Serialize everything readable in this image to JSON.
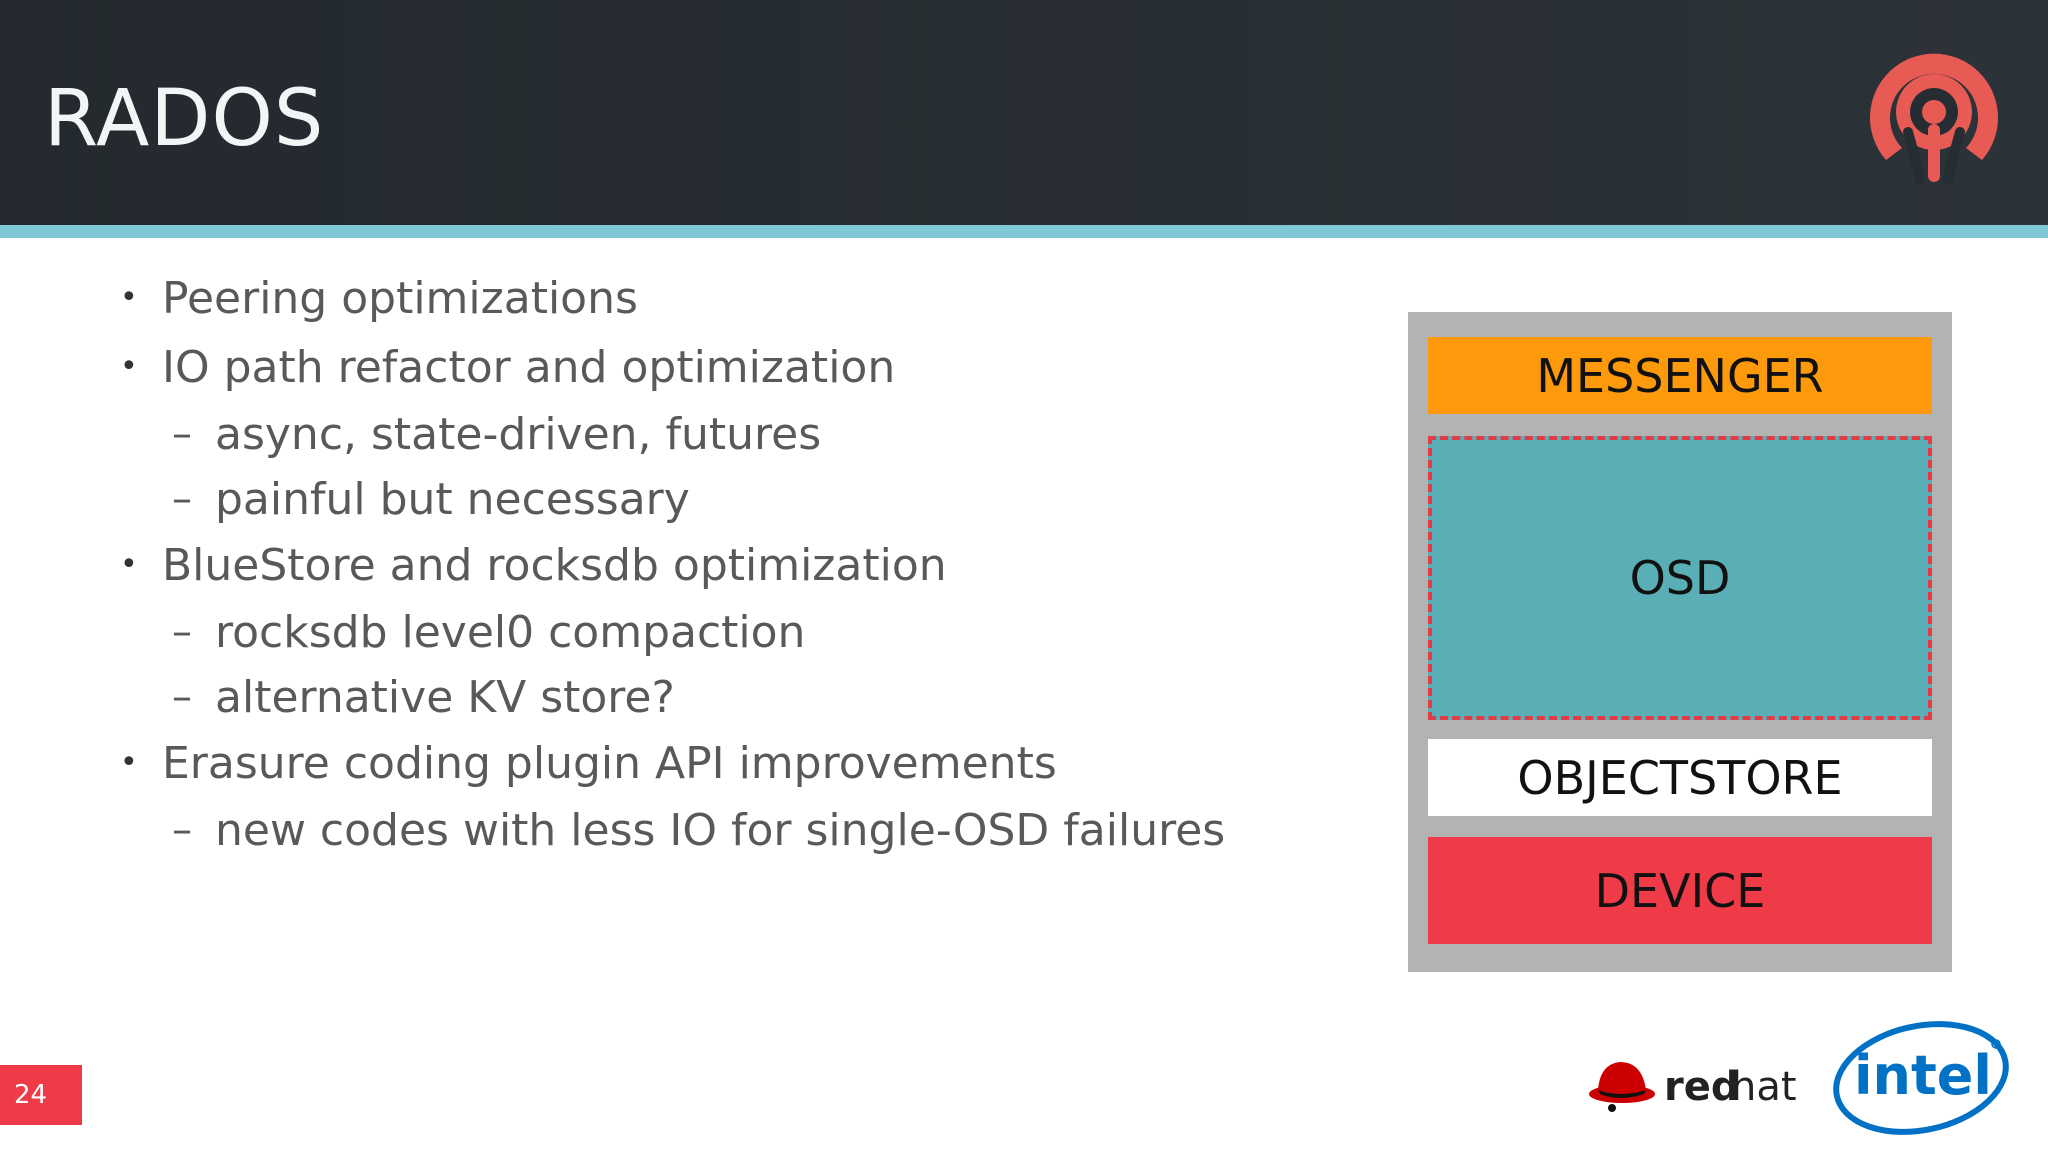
{
  "slide": {
    "title": "RADOS",
    "page_number": "24"
  },
  "bullets": [
    {
      "level": 1,
      "text": "Peering optimizations"
    },
    {
      "level": 1,
      "text": "IO path refactor and optimization"
    },
    {
      "level": 2,
      "text": "async, state-driven, futures"
    },
    {
      "level": 2,
      "text": "painful but necessary"
    },
    {
      "level": 1,
      "text": "BlueStore and rocksdb optimization"
    },
    {
      "level": 2,
      "text": "rocksdb level0 compaction"
    },
    {
      "level": 2,
      "text": "alternative KV store?"
    },
    {
      "level": 1,
      "text": "Erasure coding plugin API improvements"
    },
    {
      "level": 2,
      "text": "new codes with less IO for single-OSD failures"
    }
  ],
  "stack_diagram": {
    "layers": {
      "messenger": "MESSENGER",
      "osd": "OSD",
      "objectstore": "OBJECTSTORE",
      "device": "DEVICE"
    },
    "colors": {
      "frame": "#b3b3b3",
      "messenger": "#fd9a0b",
      "osd": "#5aafb6",
      "osd_border": "#e63946",
      "objectstore": "#ffffff",
      "device": "#ef3a47"
    }
  },
  "logos": {
    "ceph": "ceph-logo-icon",
    "redhat_text_bold": "red",
    "redhat_text_light": "hat",
    "intel_text": "intel"
  },
  "colors": {
    "header_bg": "#262d32",
    "header_stripe": "#7fc8d6",
    "accent_red": "#ef3a47",
    "body_text": "#595959"
  }
}
